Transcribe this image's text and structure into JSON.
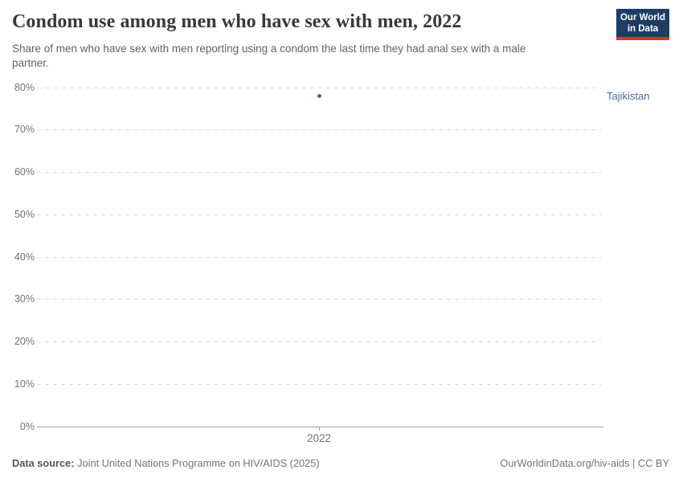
{
  "header": {
    "title": "Condom use among men who have sex with men, 2022",
    "subtitle": "Share of men who have sex with men reporting using a condom the last time they had anal sex with a male partner.",
    "logo": {
      "line1": "Our World",
      "line2": "in Data"
    }
  },
  "chart_data": {
    "type": "scatter",
    "title": "Condom use among men who have sex with men, 2022",
    "x": [
      2022
    ],
    "series": [
      {
        "name": "Tajikistan",
        "values": [
          78
        ]
      }
    ],
    "xlabel": "",
    "ylabel": "",
    "ylim": [
      0,
      80
    ],
    "ytick_step": 10,
    "ytick_labels": [
      "0%",
      "10%",
      "20%",
      "30%",
      "40%",
      "50%",
      "60%",
      "70%",
      "80%"
    ],
    "xtick_labels": [
      "2022"
    ],
    "grid": "horizontal-dashed",
    "legend_position": "entity-label-right-of-plot"
  },
  "colors": {
    "series_blue": "#4C6A9C",
    "grid": "#dcdcdc",
    "axis": "#9e9e9e",
    "tick_text": "#737373",
    "logo_bg": "#1d3d63",
    "logo_accent": "#d9352c"
  },
  "footer": {
    "source_label": "Data source:",
    "source_text": "Joint United Nations Programme on HIV/AIDS (2025)",
    "link_text": "OurWorldinData.org/hiv-aids | CC BY"
  }
}
